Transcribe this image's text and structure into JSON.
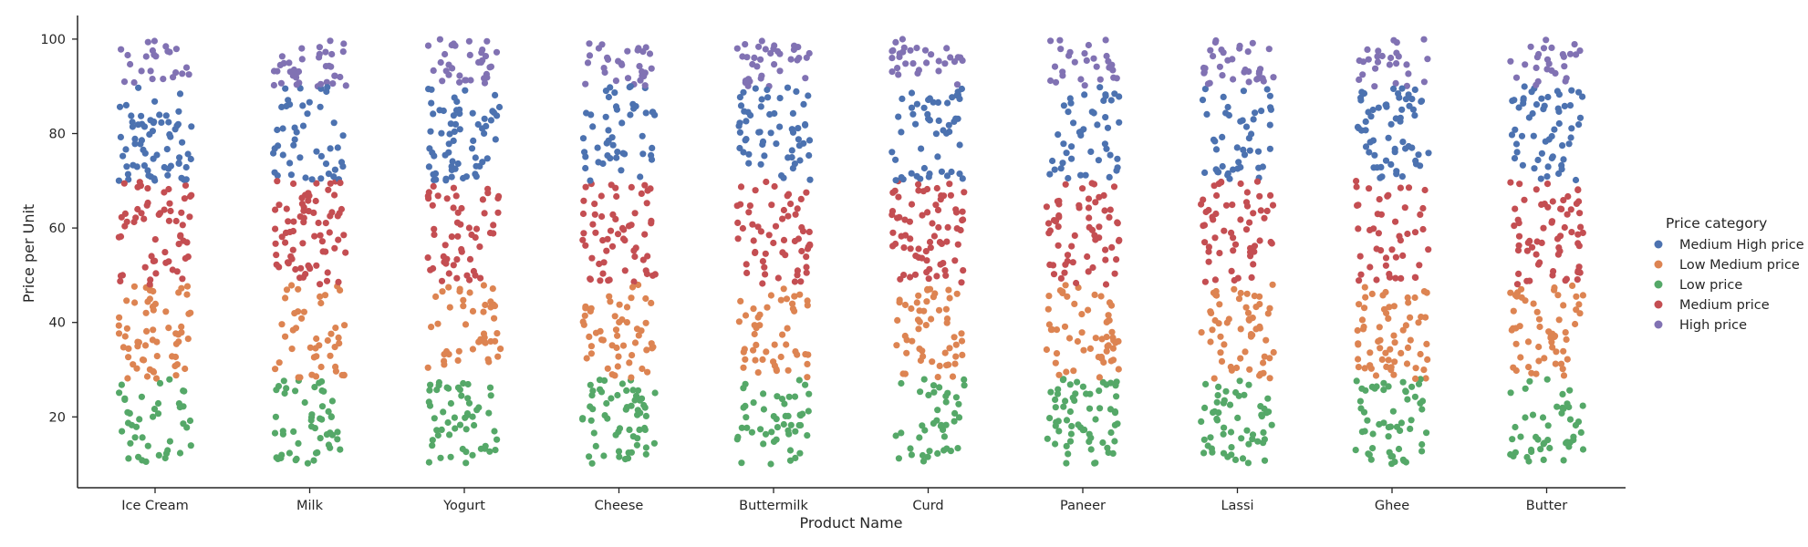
{
  "chart_data": {
    "type": "scatter",
    "subtype": "strip",
    "xlabel": "Product Name",
    "ylabel": "Price per Unit",
    "categories": [
      "Ice Cream",
      "Milk",
      "Yogurt",
      "Cheese",
      "Buttermilk",
      "Curd",
      "Paneer",
      "Lassi",
      "Ghee",
      "Butter"
    ],
    "ylim": [
      5,
      105
    ],
    "yticks": [
      20,
      40,
      60,
      80,
      100
    ],
    "points_per_category": 250,
    "legend": {
      "title": "Price category",
      "placement": "right"
    },
    "series": [
      {
        "name": "Medium High price",
        "range": [
          70,
          90
        ],
        "color": "#4c72b0"
      },
      {
        "name": "Low Medium price",
        "range": [
          28,
          48
        ],
        "color": "#dd8452"
      },
      {
        "name": "Low price",
        "range": [
          10,
          28
        ],
        "color": "#55a868"
      },
      {
        "name": "Medium price",
        "range": [
          48,
          70
        ],
        "color": "#c44e52"
      },
      {
        "name": "High price",
        "range": [
          90,
          100
        ],
        "color": "#8172b3"
      }
    ],
    "grid": false
  }
}
